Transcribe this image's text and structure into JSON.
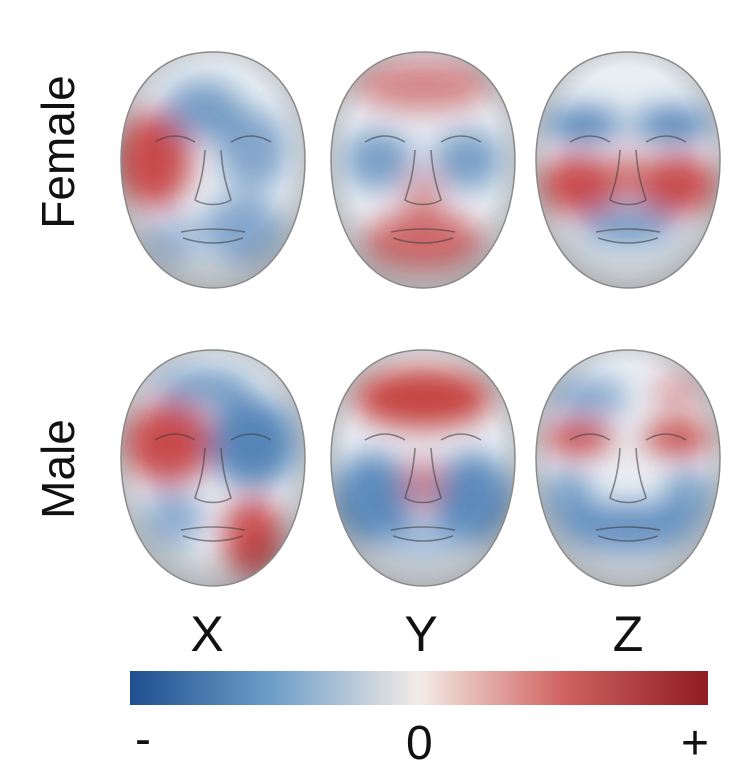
{
  "rows": [
    "Female",
    "Male"
  ],
  "columns": [
    "X",
    "Y",
    "Z"
  ],
  "colorbar": {
    "min_label": "-",
    "mid_label": "0",
    "max_label": "+",
    "colors": [
      "#1f4f8f",
      "#6f9fc9",
      "#f3ece6",
      "#d0625f",
      "#8e1c22"
    ]
  },
  "face_colors": {
    "positive": "#c2302e",
    "negative": "#2f6aa9",
    "neutral": "#e9eef3"
  }
}
